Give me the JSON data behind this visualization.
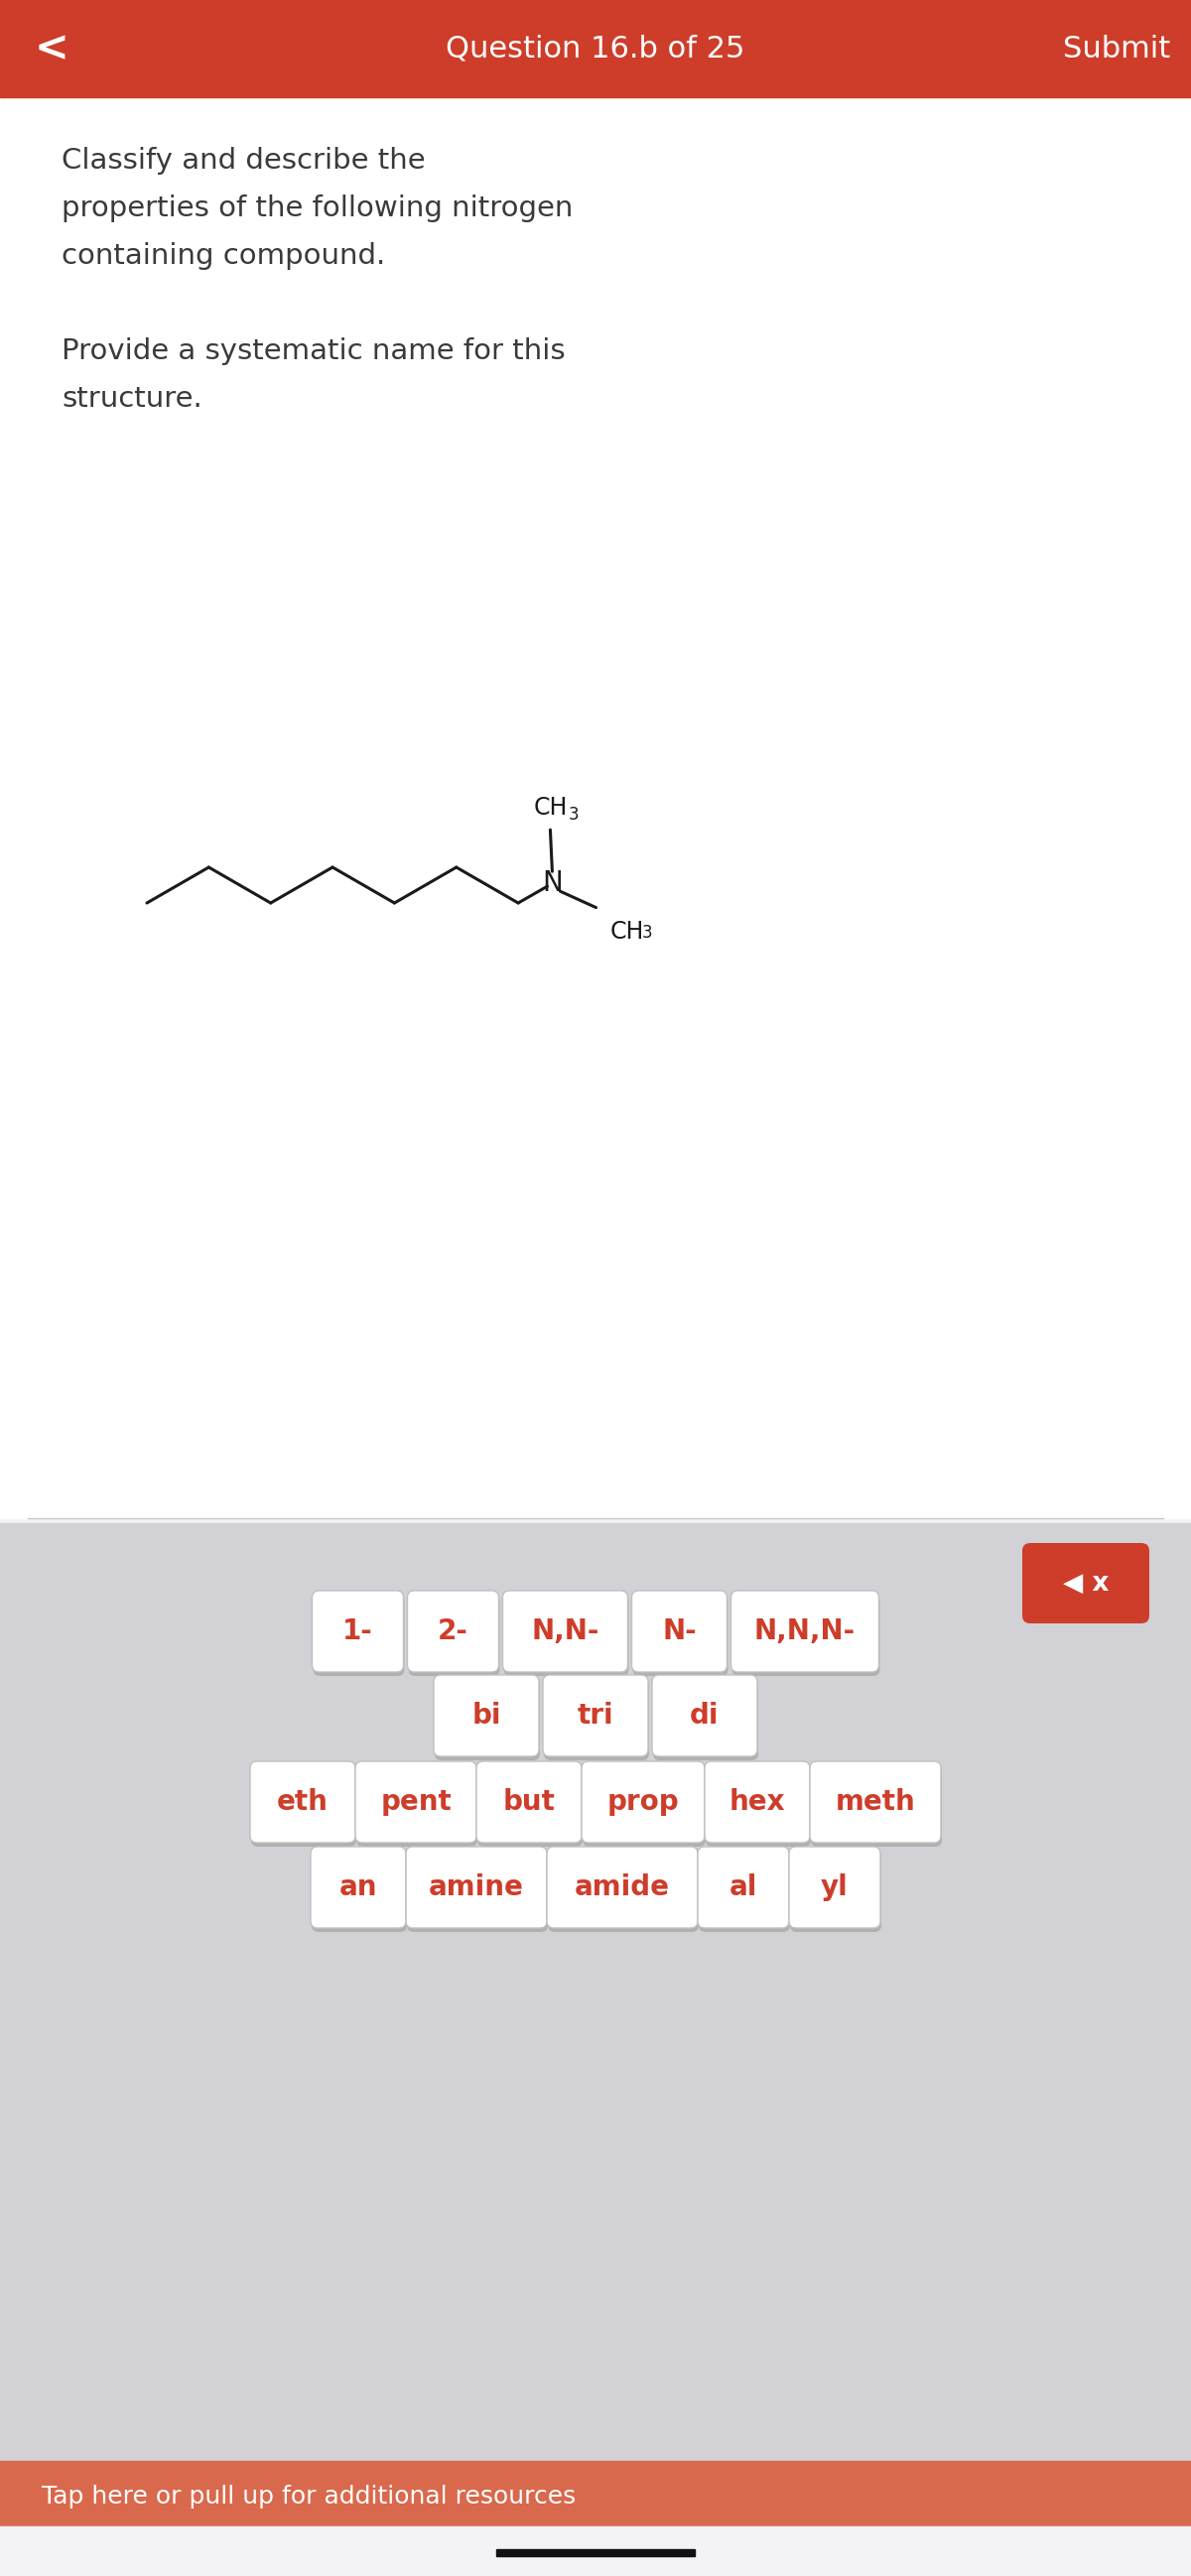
{
  "bg_color": "#f2f2f7",
  "header_color": "#cd3d2a",
  "header_text": "Question 16.b of 25",
  "header_submit": "Submit",
  "header_back": "<",
  "header_text_color": "#ffffff",
  "question_color": "#3a3a3a",
  "mol_line_color": "#1a1a1a",
  "keyboard_bg": "#d1d1d6",
  "key_bg": "#ffffff",
  "key_text_color": "#cd3d2a",
  "key_border_color": "#c0c0c0",
  "key_shadow_color": "#b0b0b0",
  "del_btn_color": "#cd3d2a",
  "sep_color": "#c8c8c8",
  "tap_bar_color": "#d9694d",
  "tap_bar_text_color": "#ffffff",
  "tap_bar_text": "Tap here or pull up for additional resources",
  "row1_labels": [
    "1-",
    "2-",
    "N,N-",
    "N-",
    "N,N,N-"
  ],
  "row2_labels": [
    "bi",
    "tri",
    "di"
  ],
  "row3_labels": [
    "eth",
    "pent",
    "but",
    "prop",
    "hex",
    "meth"
  ],
  "row4_labels": [
    "an",
    "amine",
    "amide",
    "al",
    "yl"
  ]
}
